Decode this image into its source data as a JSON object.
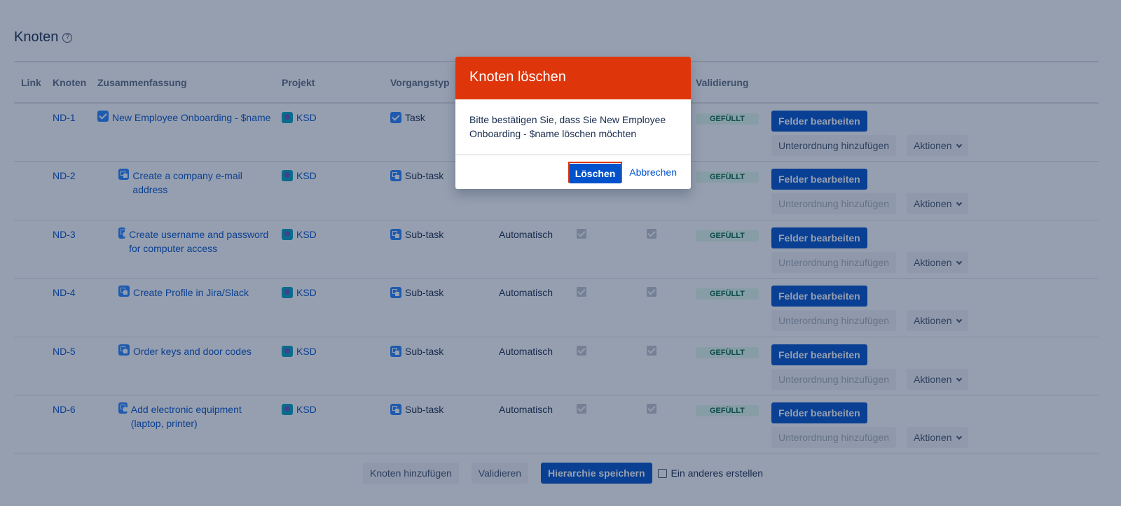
{
  "page": {
    "title": "Knoten"
  },
  "table": {
    "headers": [
      "Link",
      "Knoten",
      "Zusammenfassung",
      "Projekt",
      "Vorgangstyp",
      "",
      "",
      "",
      "Validierung",
      ""
    ],
    "rows": [
      {
        "id": "ND-1",
        "summary": "New Employee Onboarding - $name",
        "project": "KSD",
        "type": "Task",
        "mode": "",
        "validation": "GEFÜLLT",
        "child": false,
        "add_child_enabled": true
      },
      {
        "id": "ND-2",
        "summary": "Create a company e-mail address",
        "project": "KSD",
        "type": "Sub-task",
        "mode": "",
        "validation": "GEFÜLLT",
        "child": true,
        "add_child_enabled": false
      },
      {
        "id": "ND-3",
        "summary": "Create username and password for computer access",
        "project": "KSD",
        "type": "Sub-task",
        "mode": "Automatisch",
        "validation": "GEFÜLLT",
        "child": true,
        "add_child_enabled": false
      },
      {
        "id": "ND-4",
        "summary": "Create Profile in Jira/Slack",
        "project": "KSD",
        "type": "Sub-task",
        "mode": "Automatisch",
        "validation": "GEFÜLLT",
        "child": true,
        "add_child_enabled": false
      },
      {
        "id": "ND-5",
        "summary": "Order keys and door codes",
        "project": "KSD",
        "type": "Sub-task",
        "mode": "Automatisch",
        "validation": "GEFÜLLT",
        "child": true,
        "add_child_enabled": false
      },
      {
        "id": "ND-6",
        "summary": "Add electronic equipment (laptop, printer)",
        "project": "KSD",
        "type": "Sub-task",
        "mode": "Automatisch",
        "validation": "GEFÜLLT",
        "child": true,
        "add_child_enabled": false
      }
    ],
    "edit_label": "Felder bearbeiten",
    "add_child_label": "Unterordnung hinzufügen",
    "actions_label": "Aktionen"
  },
  "footer": {
    "add_node": "Knoten hinzufügen",
    "validate": "Validieren",
    "save": "Hierarchie speichern",
    "create_another": "Ein anderes erstellen"
  },
  "modal": {
    "title": "Knoten löschen",
    "body": "Bitte bestätigen Sie, dass Sie New Employee Onboarding - $name löschen möchten",
    "confirm": "Löschen",
    "cancel": "Abbrechen"
  },
  "colors": {
    "primary": "#0052cc",
    "danger": "#de350b"
  }
}
